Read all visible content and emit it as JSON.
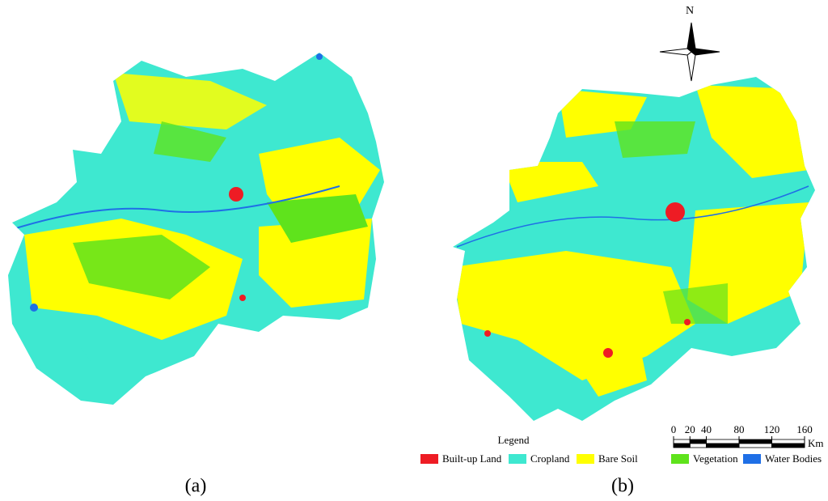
{
  "north_label": "N",
  "legend": {
    "title": "Legend",
    "items": [
      {
        "label": "Built-up Land",
        "color": "#ee1c24"
      },
      {
        "label": "Cropland",
        "color": "#3ee8d0"
      },
      {
        "label": "Bare Soil",
        "color": "#ffff00"
      },
      {
        "label": "Vegetation",
        "color": "#5fe31c"
      },
      {
        "label": "Water Bodies",
        "color": "#1f6fe6"
      }
    ]
  },
  "scale_bar": {
    "ticks": [
      0,
      20,
      40,
      80,
      120,
      160
    ],
    "unit": "Km"
  },
  "panels": [
    {
      "label": "(a)"
    },
    {
      "label": "(b)"
    }
  ]
}
